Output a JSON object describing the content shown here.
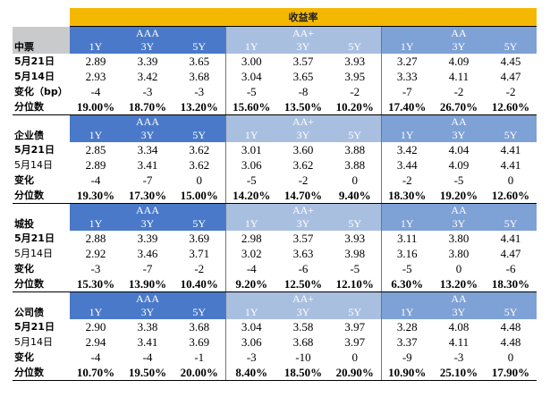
{
  "title": "收益率",
  "sections": [
    {
      "name": "中票",
      "groups": [
        "AAA",
        "AA+",
        "AA"
      ],
      "tenors": [
        "1Y",
        "3Y",
        "5Y",
        "1Y",
        "3Y",
        "5Y",
        "1Y",
        "3Y",
        "5Y"
      ],
      "rows": [
        {
          "label": "5月21日",
          "bold": true,
          "values": [
            "2.89",
            "3.39",
            "3.65",
            "3.00",
            "3.57",
            "3.93",
            "3.27",
            "4.09",
            "4.45"
          ]
        },
        {
          "label": "5月14日",
          "bold": true,
          "values": [
            "2.93",
            "3.42",
            "3.68",
            "3.04",
            "3.65",
            "3.95",
            "3.33",
            "4.11",
            "4.47"
          ]
        },
        {
          "label": "变化（bp）",
          "bold": true,
          "values": [
            "-4",
            "-3",
            "-3",
            "-5",
            "-8",
            "-2",
            "-7",
            "-2",
            "-2"
          ]
        },
        {
          "label": "分位数",
          "bold": true,
          "pct": true,
          "values": [
            "19.00%",
            "18.70%",
            "13.20%",
            "15.60%",
            "13.50%",
            "10.20%",
            "17.40%",
            "26.70%",
            "12.60%"
          ]
        }
      ]
    },
    {
      "name": "企业债",
      "groups": [
        "AAA",
        "AA+",
        "AA"
      ],
      "tenors": [
        "1Y",
        "3Y",
        "5Y",
        "1Y",
        "3Y",
        "5Y",
        "1Y",
        "3Y",
        "5Y"
      ],
      "rows": [
        {
          "label": "5月21日",
          "bold": true,
          "values": [
            "2.85",
            "3.34",
            "3.62",
            "3.01",
            "3.60",
            "3.88",
            "3.42",
            "4.04",
            "4.41"
          ]
        },
        {
          "label": "5月14日",
          "bold": false,
          "values": [
            "2.89",
            "3.41",
            "3.62",
            "3.06",
            "3.62",
            "3.88",
            "3.44",
            "4.09",
            "4.41"
          ]
        },
        {
          "label": "变化",
          "bold": true,
          "values": [
            "-4",
            "-7",
            "0",
            "-5",
            "-2",
            "0",
            "-2",
            "-5",
            "0"
          ]
        },
        {
          "label": "分位数",
          "bold": true,
          "pct": true,
          "values": [
            "19.30%",
            "17.30%",
            "15.00%",
            "14.20%",
            "14.70%",
            "9.40%",
            "18.30%",
            "19.20%",
            "12.60%"
          ]
        }
      ]
    },
    {
      "name": "城投",
      "groups": [
        "AAA",
        "AA+",
        "AA"
      ],
      "tenors": [
        "1Y",
        "3Y",
        "5Y",
        "1Y",
        "3Y",
        "5Y",
        "1Y",
        "3Y",
        "5Y"
      ],
      "rows": [
        {
          "label": "5月21日",
          "bold": true,
          "values": [
            "2.88",
            "3.39",
            "3.69",
            "2.98",
            "3.57",
            "3.93",
            "3.11",
            "3.80",
            "4.41"
          ]
        },
        {
          "label": "5月14日",
          "bold": false,
          "values": [
            "2.92",
            "3.46",
            "3.71",
            "3.02",
            "3.63",
            "3.98",
            "3.16",
            "3.80",
            "4.47"
          ]
        },
        {
          "label": "变化",
          "bold": true,
          "values": [
            "-3",
            "-7",
            "-2",
            "-4",
            "-6",
            "-5",
            "-5",
            "0",
            "-6"
          ]
        },
        {
          "label": "分位数",
          "bold": true,
          "pct": true,
          "values": [
            "15.30%",
            "13.90%",
            "10.40%",
            "9.20%",
            "12.50%",
            "12.10%",
            "6.30%",
            "13.20%",
            "18.30%"
          ]
        }
      ]
    },
    {
      "name": "公司债",
      "groups": [
        "AAA",
        "AA+",
        "AA"
      ],
      "tenors": [
        "1Y",
        "3Y",
        "5Y",
        "1Y",
        "3Y",
        "5Y",
        "1Y",
        "3Y",
        "5Y"
      ],
      "rows": [
        {
          "label": "5月21日",
          "bold": true,
          "values": [
            "2.90",
            "3.38",
            "3.68",
            "3.04",
            "3.58",
            "3.97",
            "3.28",
            "4.08",
            "4.48"
          ]
        },
        {
          "label": "5月14日",
          "bold": false,
          "values": [
            "2.94",
            "3.41",
            "3.69",
            "3.06",
            "3.68",
            "3.97",
            "3.37",
            "4.11",
            "4.48"
          ]
        },
        {
          "label": "变化",
          "bold": true,
          "values": [
            "-4",
            "-4",
            "-1",
            "-3",
            "-10",
            "0",
            "-9",
            "-3",
            "0"
          ]
        },
        {
          "label": "分位数",
          "bold": true,
          "pct": true,
          "values": [
            "10.70%",
            "19.50%",
            "20.00%",
            "8.40%",
            "18.50%",
            "20.90%",
            "10.90%",
            "25.10%",
            "17.90%"
          ]
        }
      ]
    }
  ],
  "colors": {
    "title_bg": "#f5b800",
    "aaa": "#4a79c9",
    "aa_plus": "#a9bfe0",
    "aa": "#7ea1d6",
    "label_bg": "#c9cacc"
  }
}
